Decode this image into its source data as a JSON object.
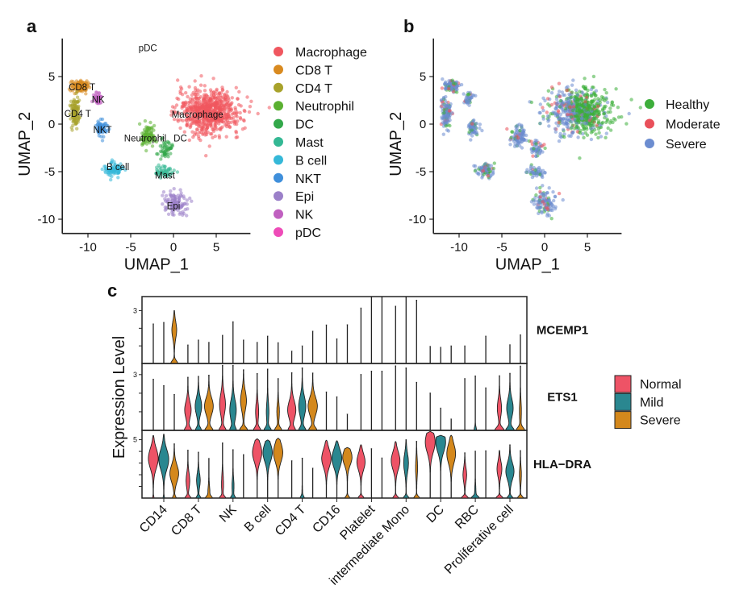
{
  "panels": {
    "a": "a",
    "b": "b",
    "c": "c"
  },
  "chart_data": [
    {
      "type": "scatter",
      "id": "umap-celltype",
      "xlabel": "UMAP_1",
      "ylabel": "UMAP_2",
      "xticks": [
        -10,
        -5,
        0,
        5
      ],
      "yticks": [
        5,
        0,
        -5,
        -10
      ],
      "xlim": [
        -13,
        9
      ],
      "ylim": [
        -11.5,
        9
      ],
      "legend_position": "right",
      "clusters": [
        {
          "name": "Macrophage",
          "color": "#F0575F",
          "center": [
            4.2,
            1.3
          ],
          "spread": [
            3.0,
            1.9
          ],
          "n": 700,
          "label_at": [
            2.8,
            1.0
          ]
        },
        {
          "name": "CD8 T",
          "color": "#D98A1F",
          "center": [
            -11.0,
            4.0
          ],
          "spread": [
            0.8,
            0.5
          ],
          "n": 110,
          "label_at": [
            -10.7,
            3.9
          ]
        },
        {
          "name": "CD4 T",
          "color": "#A8A22B",
          "center": [
            -11.5,
            1.2
          ],
          "spread": [
            0.45,
            1.3
          ],
          "n": 110,
          "label_at": [
            -11.2,
            1.1
          ]
        },
        {
          "name": "Neutrophil",
          "color": "#5BB031",
          "center": [
            -3.0,
            -1.3
          ],
          "spread": [
            0.8,
            0.9
          ],
          "n": 90,
          "label_at": [
            -3.3,
            -1.5
          ]
        },
        {
          "name": "DC",
          "color": "#33A84A",
          "center": [
            -0.9,
            -2.6
          ],
          "spread": [
            0.6,
            0.8
          ],
          "n": 50,
          "label_at": [
            0.8,
            -1.5
          ]
        },
        {
          "name": "Mast",
          "color": "#34B894",
          "center": [
            -1.0,
            -5.0
          ],
          "spread": [
            0.9,
            0.5
          ],
          "n": 50,
          "label_at": [
            -1.0,
            -5.4
          ]
        },
        {
          "name": "B cell",
          "color": "#35B8D8",
          "center": [
            -7.0,
            -4.8
          ],
          "spread": [
            0.9,
            0.6
          ],
          "n": 80,
          "label_at": [
            -6.5,
            -4.5
          ]
        },
        {
          "name": "NKT",
          "color": "#3F8FDB",
          "center": [
            -8.4,
            -0.4
          ],
          "spread": [
            0.5,
            0.7
          ],
          "n": 60,
          "label_at": [
            -8.3,
            -0.6
          ]
        },
        {
          "name": "Epi",
          "color": "#9B80C9",
          "center": [
            0.2,
            -8.2
          ],
          "spread": [
            1.2,
            1.1
          ],
          "n": 110,
          "label_at": [
            0.0,
            -8.6
          ]
        },
        {
          "name": "NK",
          "color": "#C060C0",
          "center": [
            -8.9,
            2.6
          ],
          "spread": [
            0.4,
            0.6
          ],
          "n": 40,
          "label_at": [
            -8.8,
            2.6
          ]
        },
        {
          "name": "pDC",
          "color": "#EE4BB8",
          "center": [
            -3.0,
            8.0
          ],
          "spread": [
            0,
            0
          ],
          "n": 0,
          "label_at": [
            -3.0,
            8.0
          ]
        }
      ]
    },
    {
      "type": "scatter",
      "id": "umap-condition",
      "xlabel": "UMAP_1",
      "ylabel": "UMAP_2",
      "xticks": [
        -10,
        -5,
        0,
        5
      ],
      "yticks": [
        5,
        0,
        -5,
        -10
      ],
      "xlim": [
        -13,
        9
      ],
      "ylim": [
        -11.5,
        9
      ],
      "legend_position": "right",
      "groups": [
        {
          "name": "Healthy",
          "color": "#3DAE3B"
        },
        {
          "name": "Moderate",
          "color": "#E9505A"
        },
        {
          "name": "Severe",
          "color": "#6C8DD0"
        }
      ]
    },
    {
      "type": "violin",
      "id": "expression-violins",
      "ylabel": "Expression Level",
      "categories": [
        "CD14",
        "CD8 T",
        "NK",
        "B cell",
        "CD4 T",
        "CD16",
        "Platelet",
        "intermediate Mono",
        "DC",
        "RBC",
        "Proliferative cell"
      ],
      "groups": [
        {
          "name": "Normal",
          "color": "#EE5366"
        },
        {
          "name": "Mild",
          "color": "#2A8790"
        },
        {
          "name": "Severe",
          "color": "#D4881C"
        }
      ],
      "violin_fields": [
        "max",
        "peak",
        "width",
        "base"
      ],
      "genes": [
        {
          "name": "MCEMP1",
          "ymax": 3.8,
          "tick_label": "3",
          "tick_value": 3,
          "values": [
            [
              [
                2.25,
                0,
                0,
                0
              ],
              [
                2.33,
                0,
                0,
                0
              ],
              [
                3.0,
                1.9,
                0.4,
                0.6
              ]
            ],
            [
              [
                1.05,
                0,
                0,
                0
              ],
              [
                1.33,
                0,
                0,
                0
              ],
              [
                1.2,
                0,
                0,
                0
              ]
            ],
            [
              [
                1.6,
                0,
                0,
                0
              ],
              [
                2.37,
                0,
                0,
                0
              ],
              [
                1.33,
                0,
                0,
                0
              ]
            ],
            [
              [
                1.2,
                0,
                0,
                0
              ],
              [
                1.55,
                0,
                0,
                0
              ],
              [
                1.18,
                0,
                0,
                0
              ]
            ],
            [
              [
                0.7,
                0,
                0,
                0
              ],
              [
                1.0,
                0,
                0,
                0
              ],
              [
                1.83,
                0,
                0,
                0
              ]
            ],
            [
              [
                2.19,
                0,
                0,
                0
              ],
              [
                1.4,
                0,
                0,
                0
              ],
              [
                2.2,
                0,
                0,
                0
              ]
            ],
            [
              [
                3.15,
                0,
                0,
                0
              ],
              [
                3.8,
                0,
                0,
                0
              ],
              [
                3.8,
                0,
                0,
                0
              ]
            ],
            [
              [
                3.25,
                0,
                0,
                0
              ],
              [
                3.8,
                0,
                0,
                0
              ],
              [
                3.6,
                0,
                0,
                0
              ]
            ],
            [
              [
                0.97,
                0,
                0,
                0
              ],
              [
                0.92,
                0,
                0,
                0
              ],
              [
                1.0,
                0,
                0,
                0
              ]
            ],
            [
              [
                1.0,
                0,
                0,
                0
              ],
              [
                0,
                0,
                0,
                0
              ],
              [
                1.55,
                0,
                0,
                0
              ]
            ],
            [
              [
                0,
                0,
                0,
                0
              ],
              [
                1.06,
                0,
                0,
                0
              ],
              [
                1.63,
                0,
                0,
                0
              ]
            ]
          ]
        },
        {
          "name": "ETS1",
          "ymax": 3.6,
          "tick_label": "3",
          "tick_value": 3,
          "values": [
            [
              [
                2.76,
                0,
                0,
                0
              ],
              [
                2.41,
                0,
                0,
                0
              ],
              [
                1.93,
                0,
                0,
                0
              ]
            ],
            [
              [
                2.86,
                1.1,
                0.55,
                0.6
              ],
              [
                2.91,
                1.3,
                0.55,
                0.5
              ],
              [
                2.97,
                1.3,
                0.75,
                0.7
              ]
            ],
            [
              [
                3.5,
                1.4,
                0.5,
                0.6
              ],
              [
                3.5,
                1.1,
                0.55,
                0.5
              ],
              [
                3.26,
                1.6,
                0.5,
                0.7
              ]
            ],
            [
              [
                3.06,
                1.0,
                0.25,
                0.6
              ],
              [
                3.3,
                1.0,
                0.2,
                0.6
              ],
              [
                2.79,
                1.0,
                0.2,
                0.6
              ]
            ],
            [
              [
                3.1,
                1.1,
                0.7,
                0.6
              ],
              [
                3.36,
                1.3,
                0.6,
                0.6
              ],
              [
                3.09,
                1.3,
                0.8,
                0.7
              ]
            ],
            [
              [
                2.07,
                0,
                0,
                0
              ],
              [
                1.81,
                0,
                0,
                0
              ],
              [
                0.87,
                0,
                0,
                0
              ]
            ],
            [
              [
                3.01,
                0,
                0,
                0
              ],
              [
                3.19,
                0,
                0,
                0
              ],
              [
                3.19,
                0,
                0,
                0
              ]
            ],
            [
              [
                3.47,
                0,
                0,
                0
              ],
              [
                3.36,
                0,
                0,
                0
              ],
              [
                2.59,
                0,
                0,
                0
              ]
            ],
            [
              [
                2.01,
                0,
                0,
                0
              ],
              [
                1.2,
                0,
                0,
                0
              ],
              [
                0.61,
                0,
                0,
                0
              ]
            ],
            [
              [
                2.79,
                0,
                0,
                0
              ],
              [
                2.93,
                0,
                0,
                0.2
              ],
              [
                2.29,
                0,
                0,
                0
              ]
            ],
            [
              [
                2.94,
                1.2,
                0.35,
                0.8
              ],
              [
                3.07,
                1.2,
                0.55,
                0.7
              ],
              [
                3.46,
                1.0,
                0.15,
                0.7
              ]
            ]
          ]
        },
        {
          "name": "HLA−DRA",
          "ymax": 5.8,
          "tick_label": "5",
          "tick_value": 5,
          "values": [
            [
              [
                5.35,
                3.4,
                0.85,
                0.1
              ],
              [
                5.47,
                3.3,
                0.85,
                0.1
              ],
              [
                4.65,
                2.1,
                0.75,
                0.3
              ]
            ],
            [
              [
                4.1,
                1.5,
                0.3,
                0.5
              ],
              [
                3.93,
                1.5,
                0.3,
                0.4
              ],
              [
                3.4,
                0.5,
                0.15,
                0.5
              ]
            ],
            [
              [
                4.72,
                1.2,
                0.15,
                0.5
              ],
              [
                4.14,
                1.0,
                0.15,
                0.4
              ],
              [
                3.72,
                0,
                0,
                0
              ]
            ],
            [
              [
                5.07,
                3.9,
                0.8,
                0
              ],
              [
                4.98,
                3.9,
                0.8,
                0
              ],
              [
                5.12,
                3.9,
                0.8,
                0
              ]
            ],
            [
              [
                3.2,
                0,
                0,
                0
              ],
              [
                3.42,
                0.1,
                0.05,
                0.3
              ],
              [
                2.56,
                0,
                0,
                0
              ]
            ],
            [
              [
                4.95,
                3.4,
                0.8,
                0
              ],
              [
                4.9,
                3.4,
                0.85,
                0
              ],
              [
                4.33,
                3.5,
                0.8,
                0.4
              ]
            ],
            [
              [
                4.56,
                3.1,
                0.7,
                0.5
              ],
              [
                4.23,
                0,
                0,
                0
              ],
              [
                3.44,
                0,
                0,
                0
              ]
            ],
            [
              [
                4.84,
                3.2,
                0.75,
                0.5
              ],
              [
                5.0,
                3.0,
                0.4,
                0.5
              ],
              [
                4.86,
                2.6,
                0.15,
                0.5
              ]
            ],
            [
              [
                5.7,
                4.8,
                0.85,
                0
              ],
              [
                5.37,
                4.8,
                0.85,
                0
              ],
              [
                5.37,
                3.8,
                0.75,
                0
              ]
            ],
            [
              [
                3.88,
                2.0,
                0.3,
                0.6
              ],
              [
                4.02,
                0.3,
                0.1,
                0.6
              ],
              [
                4.05,
                0,
                0,
                0
              ]
            ],
            [
              [
                4.07,
                2.5,
                0.4,
                0.6
              ],
              [
                4.56,
                2.3,
                0.7,
                0.5
              ],
              [
                4.07,
                2.0,
                0.15,
                0.5
              ]
            ]
          ]
        }
      ]
    }
  ]
}
